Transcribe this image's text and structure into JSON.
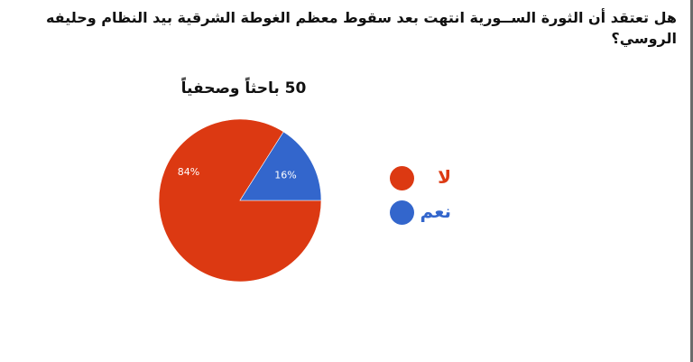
{
  "question": "هل تعتقد أن الثورة الســورية انتهت بعد سقوط معظم الغوطة الشرقية بيد النظام وحليفه الروسي؟",
  "chart_data": {
    "type": "pie",
    "title": "50 باحثاً وصحفياً",
    "slices": [
      {
        "label": "لا",
        "value": 84,
        "display": "84%",
        "color": "#dc3912"
      },
      {
        "label": "نعم",
        "value": 16,
        "display": "16%",
        "color": "#3366cc"
      }
    ],
    "start_angle_deg": 0,
    "legend_position": "right"
  }
}
